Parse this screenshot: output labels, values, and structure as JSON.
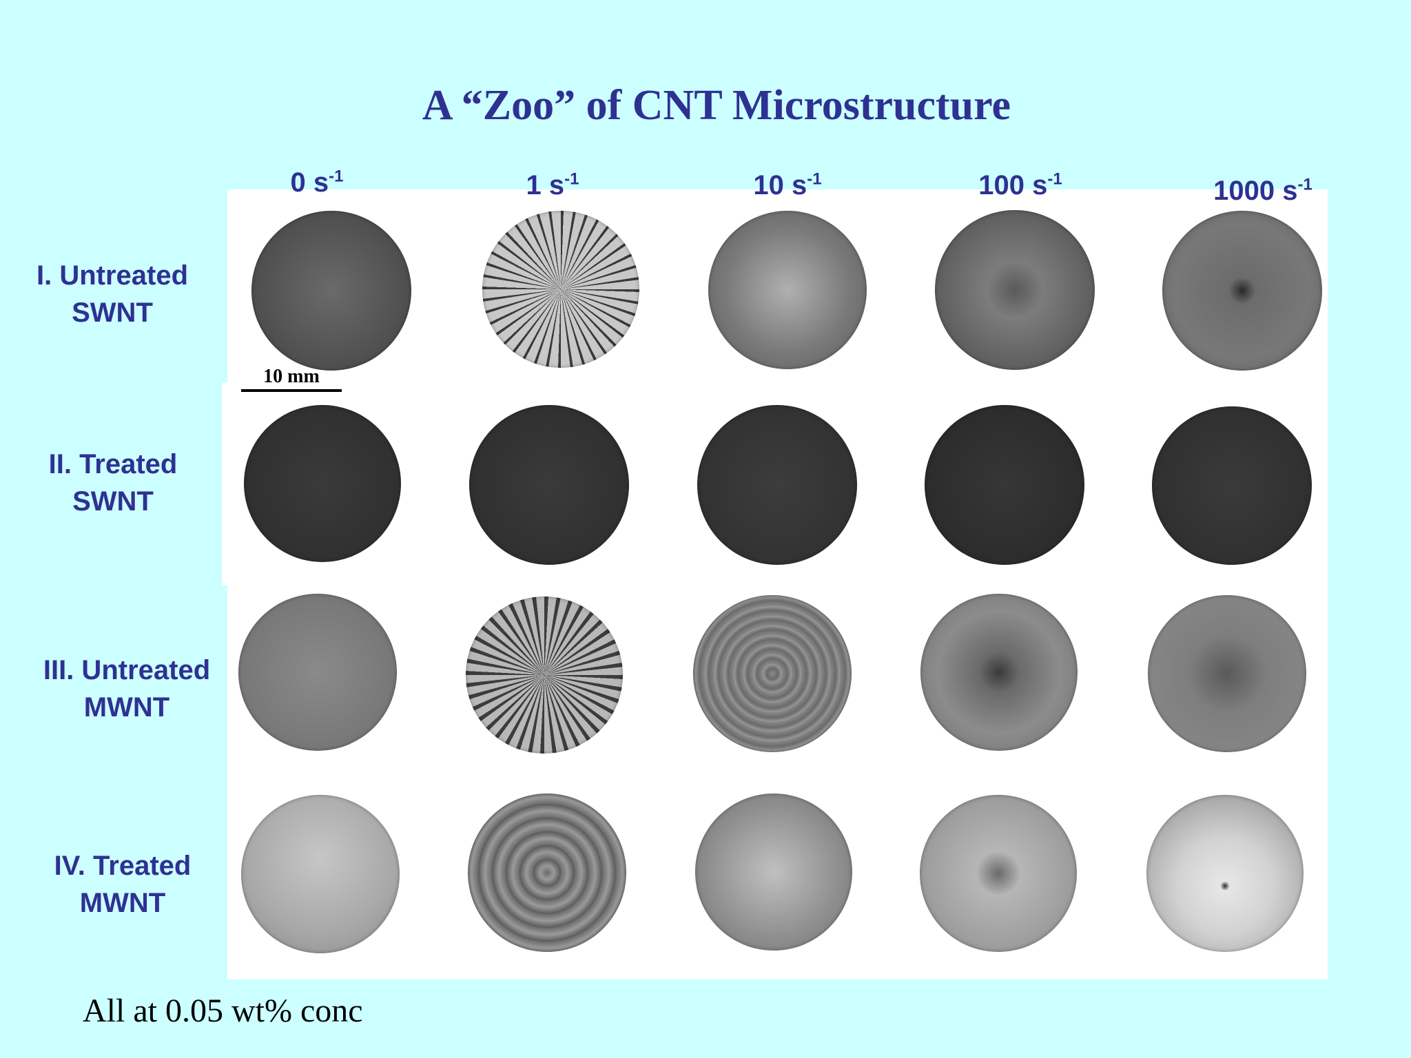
{
  "title": "A “Zoo” of CNT Microstructure",
  "columns": [
    {
      "value": "0 s",
      "exp": "-1"
    },
    {
      "value": "1 s",
      "exp": "-1"
    },
    {
      "value": "10 s",
      "exp": "-1"
    },
    {
      "value": "100 s",
      "exp": "-1"
    },
    {
      "value": "1000 s",
      "exp": "-1"
    }
  ],
  "rows": [
    {
      "line1": "I. Untreated",
      "line2": "SWNT"
    },
    {
      "line1": "II. Treated",
      "line2": "SWNT"
    },
    {
      "line1": "III. Untreated",
      "line2": "MWNT"
    },
    {
      "line1": "IV. Treated",
      "line2": "MWNT"
    }
  ],
  "scale_bar_label": "10 mm",
  "footnote": "All at 0.05 wt% conc"
}
